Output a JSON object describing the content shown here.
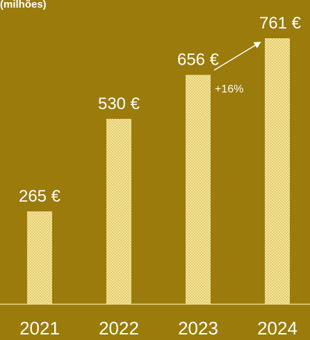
{
  "chart_data": {
    "type": "bar",
    "title": "(milhões)",
    "categories": [
      "2021",
      "2022",
      "2023",
      "2024"
    ],
    "values": [
      265,
      530,
      656,
      761
    ],
    "value_labels": [
      "265 €",
      "530 €",
      "656 €",
      "761 €"
    ],
    "color": "#f3e39a",
    "annotations": [
      {
        "text": "+16%"
      }
    ]
  }
}
